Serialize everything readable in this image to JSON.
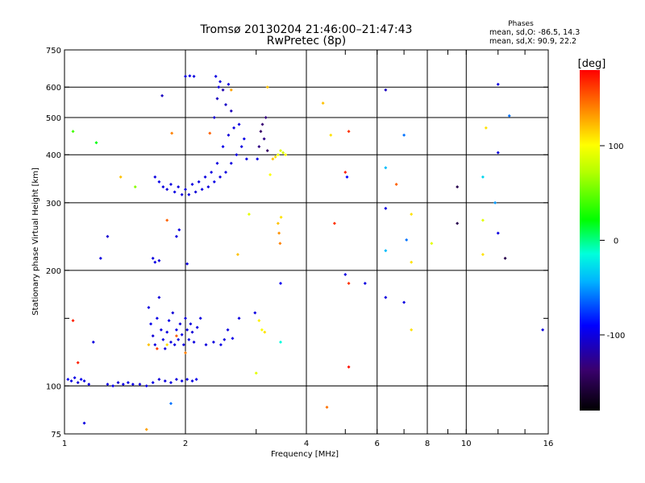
{
  "chart_data": {
    "type": "scatter",
    "title": "Tromsø 20130204 21:46:00–21:47:43",
    "subtitle": "RwPretec (8p)",
    "xlabel": "Frequency [MHz]",
    "ylabel": "Stationary phase Virtual Height [km]",
    "xscale": "log",
    "yscale": "log",
    "xlim": [
      1,
      16
    ],
    "ylim": [
      75,
      750
    ],
    "x_ticks": [
      1,
      2,
      4,
      6,
      8,
      10,
      16
    ],
    "x_tick_labels": [
      "1",
      "2",
      "4",
      "6",
      "8",
      "10",
      "16"
    ],
    "x_minor_ticks": [
      3,
      5,
      7,
      9,
      12,
      14
    ],
    "y_ticks": [
      75,
      100,
      200,
      300,
      400,
      500,
      600,
      750
    ],
    "y_tick_labels": [
      "75",
      "100",
      "200",
      "300",
      "400",
      "500",
      "600",
      "750"
    ],
    "y_minor_ticks": [
      150
    ],
    "x_gridlines": [
      2,
      4,
      6,
      8,
      10
    ],
    "y_gridlines": [
      100,
      200,
      300,
      400,
      500,
      600
    ],
    "grid": true,
    "stats": {
      "heading": "Phases",
      "line1": "mean, sd,O:  -86.5, 14.3",
      "line2": "mean, sd,X:   90.9, 22.2"
    },
    "colorbar": {
      "label": "[deg]",
      "range": [
        -180,
        180
      ],
      "ticks": [
        100,
        0,
        -100
      ],
      "tick_labels": [
        "100",
        "0",
        "-100"
      ]
    },
    "points": [
      [
        1.02,
        104,
        -95
      ],
      [
        1.04,
        103,
        -100
      ],
      [
        1.06,
        105,
        -98
      ],
      [
        1.08,
        102,
        -102
      ],
      [
        1.1,
        104,
        -96
      ],
      [
        1.12,
        103,
        -99
      ],
      [
        1.15,
        101,
        -100
      ],
      [
        1.28,
        101,
        -100
      ],
      [
        1.32,
        100,
        -97
      ],
      [
        1.36,
        102,
        -103
      ],
      [
        1.4,
        101,
        -100
      ],
      [
        1.44,
        102,
        -98
      ],
      [
        1.48,
        101,
        -99
      ],
      [
        1.54,
        101,
        -101
      ],
      [
        1.6,
        100,
        -100
      ],
      [
        1.66,
        102,
        -98
      ],
      [
        1.72,
        104,
        -102
      ],
      [
        1.78,
        103,
        -100
      ],
      [
        1.84,
        102,
        -99
      ],
      [
        1.9,
        104,
        -101
      ],
      [
        1.96,
        103,
        -100
      ],
      [
        2.02,
        104,
        -98
      ],
      [
        2.08,
        103,
        -100
      ],
      [
        2.13,
        104,
        -97
      ],
      [
        1.62,
        160,
        -100
      ],
      [
        1.64,
        145,
        -96
      ],
      [
        1.66,
        135,
        -103
      ],
      [
        1.68,
        128,
        -100
      ],
      [
        1.7,
        150,
        -98
      ],
      [
        1.72,
        170,
        -102
      ],
      [
        1.74,
        140,
        -99
      ],
      [
        1.76,
        132,
        -100
      ],
      [
        1.78,
        125,
        -101
      ],
      [
        1.8,
        138,
        -100
      ],
      [
        1.82,
        148,
        -97
      ],
      [
        1.84,
        130,
        -100
      ],
      [
        1.86,
        155,
        -103
      ],
      [
        1.88,
        128,
        -100
      ],
      [
        1.9,
        140,
        -98
      ],
      [
        1.92,
        132,
        -100
      ],
      [
        1.94,
        145,
        -102
      ],
      [
        1.96,
        136,
        -99
      ],
      [
        1.98,
        128,
        -100
      ],
      [
        2.0,
        150,
        -101
      ],
      [
        2.02,
        140,
        -100
      ],
      [
        2.04,
        132,
        -98
      ],
      [
        2.06,
        145,
        -100
      ],
      [
        2.08,
        138,
        -103
      ],
      [
        2.1,
        130,
        -100
      ],
      [
        2.14,
        142,
        -99
      ],
      [
        2.18,
        150,
        -100
      ],
      [
        2.25,
        128,
        -101
      ],
      [
        2.35,
        130,
        -100
      ],
      [
        2.45,
        128,
        -98
      ],
      [
        2.5,
        132,
        -100
      ],
      [
        2.55,
        140,
        -100
      ],
      [
        2.62,
        133,
        -97
      ],
      [
        2.72,
        150,
        -100
      ],
      [
        1.7,
        125,
        160
      ],
      [
        1.8,
        128,
        110
      ],
      [
        1.9,
        135,
        150
      ],
      [
        2.0,
        122,
        140
      ],
      [
        1.62,
        128,
        120
      ],
      [
        1.66,
        215,
        -100
      ],
      [
        1.68,
        210,
        -98
      ],
      [
        1.72,
        212,
        -102
      ],
      [
        1.9,
        245,
        -100
      ],
      [
        1.93,
        255,
        -99
      ],
      [
        2.02,
        208,
        -100
      ],
      [
        1.8,
        270,
        150
      ],
      [
        1.68,
        350,
        -100
      ],
      [
        1.72,
        340,
        -97
      ],
      [
        1.76,
        330,
        -100
      ],
      [
        1.8,
        325,
        -102
      ],
      [
        1.84,
        335,
        -100
      ],
      [
        1.88,
        320,
        -99
      ],
      [
        1.92,
        330,
        -100
      ],
      [
        1.96,
        315,
        -101
      ],
      [
        2.0,
        325,
        -100
      ],
      [
        2.04,
        315,
        -98
      ],
      [
        2.08,
        335,
        -100
      ],
      [
        2.12,
        320,
        -103
      ],
      [
        2.16,
        340,
        -100
      ],
      [
        2.2,
        325,
        -99
      ],
      [
        2.24,
        350,
        -100
      ],
      [
        2.28,
        330,
        -101
      ],
      [
        2.32,
        360,
        -100
      ],
      [
        2.36,
        340,
        -98
      ],
      [
        2.4,
        380,
        -100
      ],
      [
        2.44,
        350,
        -100
      ],
      [
        2.48,
        420,
        -97
      ],
      [
        2.52,
        360,
        -100
      ],
      [
        2.56,
        450,
        -102
      ],
      [
        2.6,
        380,
        -100
      ],
      [
        2.64,
        470,
        -99
      ],
      [
        2.68,
        400,
        -100
      ],
      [
        2.72,
        480,
        -101
      ],
      [
        2.76,
        420,
        -100
      ],
      [
        2.8,
        440,
        -98
      ],
      [
        2.84,
        390,
        -100
      ],
      [
        2.36,
        500,
        -105
      ],
      [
        2.4,
        560,
        -110
      ],
      [
        2.44,
        620,
        -100
      ],
      [
        2.48,
        590,
        -115
      ],
      [
        2.52,
        540,
        -108
      ],
      [
        2.56,
        610,
        -100
      ],
      [
        2.6,
        520,
        -112
      ],
      [
        2.38,
        640,
        -100
      ],
      [
        2.42,
        600,
        -103
      ],
      [
        2.0,
        640,
        -100
      ],
      [
        2.05,
        642,
        -98
      ],
      [
        2.1,
        640,
        -100
      ],
      [
        3.05,
        420,
        -130
      ],
      [
        3.08,
        460,
        -140
      ],
      [
        3.11,
        480,
        -135
      ],
      [
        3.14,
        440,
        -128
      ],
      [
        3.17,
        500,
        -132
      ],
      [
        3.2,
        410,
        -140
      ],
      [
        3.02,
        390,
        -100
      ],
      [
        3.3,
        390,
        120
      ],
      [
        3.35,
        395,
        110
      ],
      [
        3.4,
        400,
        95
      ],
      [
        3.45,
        410,
        90
      ],
      [
        3.5,
        405,
        85
      ],
      [
        3.55,
        400,
        100
      ],
      [
        3.4,
        265,
        120
      ],
      [
        3.42,
        250,
        135
      ],
      [
        3.44,
        235,
        140
      ],
      [
        3.46,
        275,
        110
      ],
      [
        3.05,
        148,
        105
      ],
      [
        3.1,
        140,
        100
      ],
      [
        3.15,
        138,
        110
      ],
      [
        2.98,
        155,
        -100
      ],
      [
        1.05,
        460,
        40
      ],
      [
        1.2,
        430,
        20
      ],
      [
        1.28,
        245,
        -105
      ],
      [
        1.38,
        350,
        120
      ],
      [
        1.23,
        215,
        -100
      ],
      [
        1.5,
        330,
        60
      ],
      [
        1.75,
        570,
        -110
      ],
      [
        1.85,
        455,
        140
      ],
      [
        1.84,
        90,
        -60
      ],
      [
        1.6,
        77,
        130
      ],
      [
        1.05,
        148,
        170
      ],
      [
        1.08,
        115,
        170
      ],
      [
        1.12,
        80,
        -100
      ],
      [
        1.18,
        130,
        -100
      ],
      [
        2.3,
        455,
        150
      ],
      [
        2.6,
        590,
        130
      ],
      [
        2.7,
        220,
        120
      ],
      [
        2.88,
        280,
        90
      ],
      [
        3.0,
        108,
        90
      ],
      [
        3.25,
        355,
        100
      ],
      [
        3.45,
        185,
        -95
      ],
      [
        3.45,
        130,
        -15
      ],
      [
        3.2,
        600,
        120
      ],
      [
        4.4,
        545,
        120
      ],
      [
        4.5,
        88,
        145
      ],
      [
        4.6,
        450,
        110
      ],
      [
        4.7,
        265,
        165
      ],
      [
        5.0,
        195,
        -100
      ],
      [
        5.1,
        185,
        165
      ],
      [
        5.1,
        112,
        175
      ],
      [
        5.1,
        460,
        165
      ],
      [
        5.0,
        360,
        170
      ],
      [
        5.05,
        350,
        -90
      ],
      [
        5.6,
        185,
        -100
      ],
      [
        6.3,
        590,
        -110
      ],
      [
        6.3,
        170,
        -100
      ],
      [
        6.3,
        290,
        -100
      ],
      [
        6.3,
        225,
        -40
      ],
      [
        6.3,
        370,
        -40
      ],
      [
        6.7,
        335,
        150
      ],
      [
        7.0,
        450,
        -60
      ],
      [
        7.1,
        240,
        -60
      ],
      [
        7.3,
        280,
        110
      ],
      [
        7.3,
        210,
        110
      ],
      [
        7.3,
        140,
        110
      ],
      [
        7.0,
        165,
        -100
      ],
      [
        8.2,
        235,
        90
      ],
      [
        9.5,
        330,
        -150
      ],
      [
        9.5,
        265,
        -150
      ],
      [
        11.0,
        350,
        -30
      ],
      [
        11.0,
        270,
        90
      ],
      [
        11.2,
        470,
        110
      ],
      [
        11.0,
        220,
        110
      ],
      [
        11.8,
        300,
        -50
      ],
      [
        12.0,
        250,
        -100
      ],
      [
        12.0,
        610,
        -100
      ],
      [
        12.0,
        405,
        -100
      ],
      [
        12.5,
        215,
        -150
      ],
      [
        12.8,
        505,
        -60
      ],
      [
        15.5,
        140,
        -100
      ]
    ]
  }
}
